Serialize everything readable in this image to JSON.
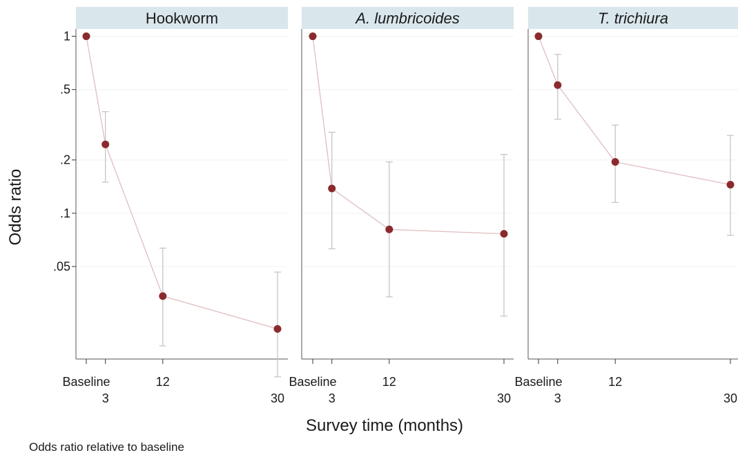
{
  "chart_data": {
    "type": "scatter",
    "ylabel": "Odds ratio",
    "xlabel": "Survey time (months)",
    "note": "Odds ratio relative to baseline",
    "y_scale": "log",
    "ylim": [
      0.015,
      1.15
    ],
    "y_ticks": [
      {
        "value": 1,
        "label": "1"
      },
      {
        "value": 0.5,
        "label": ".5"
      },
      {
        "value": 0.2,
        "label": ".2"
      },
      {
        "value": 0.1,
        "label": ".1"
      },
      {
        "value": 0.05,
        "label": ".05"
      }
    ],
    "x": [
      0,
      3,
      12,
      30
    ],
    "x_tick_labels": [
      {
        "value": 0,
        "label": "Baseline",
        "row": 1
      },
      {
        "value": 3,
        "label": "3",
        "row": 2
      },
      {
        "value": 12,
        "label": "12",
        "row": 1
      },
      {
        "value": 30,
        "label": "30",
        "row": 2
      }
    ],
    "xlim": [
      -0.5,
      30.5
    ],
    "colors": {
      "marker": "#8b2a2e",
      "line": "#e2c2c4",
      "ci": "#c6c6c6",
      "strip": "#d9e6ec",
      "grid": "#f0f0f0"
    },
    "panels": [
      {
        "name": "Hookworm",
        "italic": false,
        "points": [
          {
            "x": 0,
            "y": 1.0
          },
          {
            "x": 3,
            "y": 0.245,
            "lo": 0.15,
            "hi": 0.375
          },
          {
            "x": 12,
            "y": 0.034,
            "lo": 0.0178,
            "hi": 0.0635
          },
          {
            "x": 30,
            "y": 0.0222,
            "lo": 0.0119,
            "hi": 0.0465
          }
        ]
      },
      {
        "name": "A. lumbricoides",
        "italic": true,
        "points": [
          {
            "x": 0,
            "y": 1.0
          },
          {
            "x": 3,
            "y": 0.138,
            "lo": 0.063,
            "hi": 0.287
          },
          {
            "x": 12,
            "y": 0.081,
            "lo": 0.0337,
            "hi": 0.195
          },
          {
            "x": 30,
            "y": 0.0765,
            "lo": 0.0262,
            "hi": 0.215
          }
        ]
      },
      {
        "name": "T. trichiura",
        "italic": true,
        "points": [
          {
            "x": 0,
            "y": 1.0
          },
          {
            "x": 3,
            "y": 0.53,
            "lo": 0.34,
            "hi": 0.79
          },
          {
            "x": 12,
            "y": 0.195,
            "lo": 0.115,
            "hi": 0.315
          },
          {
            "x": 30,
            "y": 0.145,
            "lo": 0.075,
            "hi": 0.275
          }
        ]
      }
    ]
  }
}
